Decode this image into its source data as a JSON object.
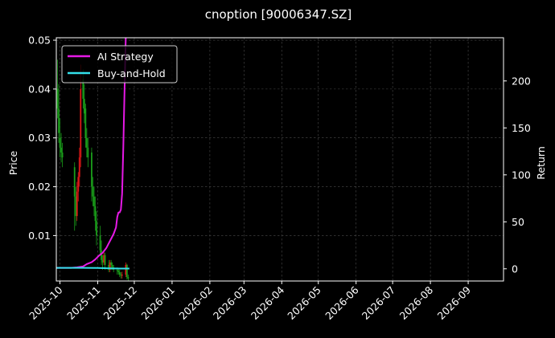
{
  "chart_data": {
    "type": "line",
    "title": "cnoption [90006347.SZ]",
    "ylabel_left": "Price",
    "ylabel_right": "Return",
    "ylim_left": [
      0.0007,
      0.0505
    ],
    "yticks_left": [
      0.01,
      0.02,
      0.03,
      0.04,
      0.05
    ],
    "ytick_labels_left": [
      "0.01",
      "0.02",
      "0.03",
      "0.04",
      "0.05"
    ],
    "ylim_right": [
      -13,
      246
    ],
    "yticks_right": [
      0,
      50,
      100,
      150,
      200
    ],
    "ytick_labels_right": [
      "0",
      "50",
      "100",
      "150",
      "200"
    ],
    "xlim": [
      "2025-09-28",
      "2026-09-30"
    ],
    "xticks": [
      "2025-10-01",
      "2025-11-01",
      "2025-12-01",
      "2026-01-01",
      "2026-02-01",
      "2026-03-01",
      "2026-04-01",
      "2026-05-01",
      "2026-06-01",
      "2026-07-01",
      "2026-08-01",
      "2026-09-01"
    ],
    "xtick_labels": [
      "2025-10",
      "2025-11",
      "2025-12",
      "2026-01",
      "2026-02",
      "2026-03",
      "2026-04",
      "2026-05",
      "2026-06",
      "2026-07",
      "2026-08",
      "2026-09"
    ],
    "grid": true,
    "legend_position": "top-left",
    "colors": {
      "background": "#000000",
      "grid": "#4a4a4a",
      "axis": "#ffffff",
      "up": "#e01818",
      "down": "#1a9e1a",
      "strategy": "#e619e6",
      "buyhold": "#33e0ea"
    },
    "series": [
      {
        "name": "AI Strategy",
        "color": "#e619e6",
        "x": [
          "2025-09-28",
          "2025-10-05",
          "2025-10-10",
          "2025-10-15",
          "2025-10-20",
          "2025-10-23",
          "2025-10-27",
          "2025-10-30",
          "2025-11-02",
          "2025-11-05",
          "2025-11-08",
          "2025-11-10",
          "2025-11-12",
          "2025-11-14",
          "2025-11-16",
          "2025-11-17",
          "2025-11-18",
          "2025-11-19",
          "2025-11-20",
          "2025-11-21",
          "2025-11-22",
          "2025-11-23",
          "2025-11-24"
        ],
        "y": [
          1,
          1,
          1,
          1.5,
          2.5,
          5,
          7,
          10,
          14,
          17,
          22,
          27,
          32,
          37,
          44,
          55,
          60,
          60,
          63,
          80,
          130,
          190,
          246
        ]
      },
      {
        "name": "Buy-and-Hold",
        "color": "#33e0ea",
        "x": [
          "2025-09-28",
          "2025-10-10",
          "2025-10-20",
          "2025-11-01",
          "2025-11-10",
          "2025-11-20",
          "2025-11-27"
        ],
        "y": [
          1,
          1,
          1,
          0.9,
          0.5,
          0.3,
          0.2
        ]
      }
    ],
    "candles": {
      "x": [
        "2025-09-29",
        "2025-09-30",
        "2025-10-01",
        "2025-10-02",
        "2025-10-03",
        "2025-10-13",
        "2025-10-14",
        "2025-10-15",
        "2025-10-16",
        "2025-10-17",
        "2025-10-18",
        "2025-10-20",
        "2025-10-21",
        "2025-10-22",
        "2025-10-23",
        "2025-10-24",
        "2025-10-27",
        "2025-10-28",
        "2025-10-29",
        "2025-10-30",
        "2025-10-31",
        "2025-11-03",
        "2025-11-04",
        "2025-11-05",
        "2025-11-06",
        "2025-11-07",
        "2025-11-10",
        "2025-11-11",
        "2025-11-12",
        "2025-11-13",
        "2025-11-14",
        "2025-11-17",
        "2025-11-18",
        "2025-11-19",
        "2025-11-20",
        "2025-11-21",
        "2025-11-24",
        "2025-11-25",
        "2025-11-26"
      ],
      "open": [
        0.04,
        0.036,
        0.03,
        0.028,
        0.027,
        0.024,
        0.018,
        0.014,
        0.019,
        0.022,
        0.026,
        0.042,
        0.038,
        0.036,
        0.03,
        0.028,
        0.027,
        0.02,
        0.018,
        0.016,
        0.013,
        0.01,
        0.007,
        0.005,
        0.0045,
        0.006,
        0.004,
        0.003,
        0.0045,
        0.004,
        0.0035,
        0.003,
        0.0028,
        0.0025,
        0.002,
        0.0018,
        0.002,
        0.004,
        0.0015
      ],
      "close": [
        0.036,
        0.031,
        0.028,
        0.027,
        0.026,
        0.018,
        0.014,
        0.019,
        0.022,
        0.026,
        0.04,
        0.038,
        0.035,
        0.03,
        0.028,
        0.026,
        0.02,
        0.018,
        0.016,
        0.013,
        0.01,
        0.007,
        0.005,
        0.0045,
        0.006,
        0.004,
        0.003,
        0.0045,
        0.004,
        0.0035,
        0.003,
        0.0028,
        0.0025,
        0.002,
        0.0018,
        0.002,
        0.004,
        0.0015,
        0.0012
      ],
      "high": [
        0.046,
        0.041,
        0.034,
        0.031,
        0.029,
        0.025,
        0.02,
        0.021,
        0.023,
        0.028,
        0.045,
        0.044,
        0.041,
        0.037,
        0.032,
        0.03,
        0.028,
        0.022,
        0.02,
        0.018,
        0.015,
        0.012,
        0.009,
        0.006,
        0.007,
        0.0065,
        0.005,
        0.005,
        0.005,
        0.0045,
        0.004,
        0.0035,
        0.0032,
        0.003,
        0.0025,
        0.0026,
        0.0045,
        0.0042,
        0.002
      ],
      "low": [
        0.034,
        0.029,
        0.026,
        0.025,
        0.024,
        0.011,
        0.012,
        0.013,
        0.017,
        0.02,
        0.024,
        0.036,
        0.033,
        0.028,
        0.026,
        0.024,
        0.017,
        0.016,
        0.014,
        0.011,
        0.008,
        0.006,
        0.004,
        0.003,
        0.004,
        0.003,
        0.0025,
        0.0025,
        0.003,
        0.003,
        0.0025,
        0.002,
        0.002,
        0.0015,
        0.0012,
        0.0012,
        0.0015,
        0.001,
        0.0008
      ]
    }
  }
}
